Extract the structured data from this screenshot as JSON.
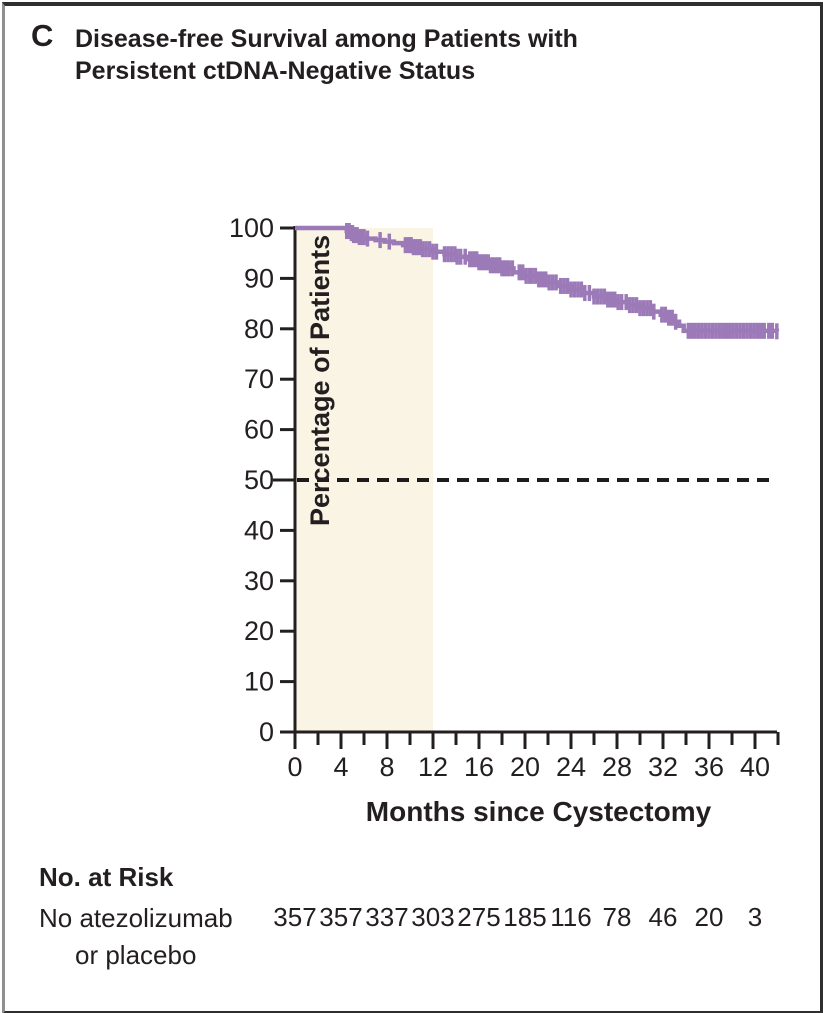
{
  "panel": {
    "label": "C",
    "title_line1": "Disease-free Survival among Patients with",
    "title_line2": "Persistent ctDNA-Negative Status"
  },
  "colors": {
    "curve": "#9c7ab8",
    "shade": "#f9f4e4",
    "axis": "#231f20",
    "dashed_line": "#1e1c1c",
    "text": "#231f20"
  },
  "chart_data": {
    "type": "line",
    "subtype": "kaplan-meier-step",
    "title": "Disease-free Survival among Patients with Persistent ctDNA-Negative Status",
    "xlabel": "Months since Cystectomy",
    "ylabel": "Percentage of Patients",
    "xlim": [
      0,
      42
    ],
    "ylim": [
      0,
      100
    ],
    "xticks_labeled": [
      0,
      4,
      8,
      12,
      16,
      20,
      24,
      28,
      32,
      36,
      40
    ],
    "xtick_minor_step": 2,
    "yticks": [
      0,
      10,
      20,
      30,
      40,
      50,
      60,
      70,
      80,
      90,
      100
    ],
    "grid": false,
    "legend": "none",
    "median_reference_line_pct": 50,
    "shaded_region": {
      "x_start": 0,
      "x_end": 12
    },
    "series": [
      {
        "name": "No atezolizumab or placebo",
        "step_points": [
          [
            0,
            100
          ],
          [
            4.3,
            100
          ],
          [
            4.5,
            99.4
          ],
          [
            4.8,
            99.0
          ],
          [
            5.1,
            98.6
          ],
          [
            5.5,
            98.2
          ],
          [
            6.2,
            97.9
          ],
          [
            7.0,
            97.6
          ],
          [
            7.8,
            97.3
          ],
          [
            8.6,
            97.0
          ],
          [
            9.4,
            96.6
          ],
          [
            10.2,
            96.2
          ],
          [
            11.0,
            95.8
          ],
          [
            12.0,
            95.3
          ],
          [
            13.0,
            94.8
          ],
          [
            14.0,
            94.3
          ],
          [
            15.0,
            93.8
          ],
          [
            16.0,
            93.2
          ],
          [
            17.0,
            92.6
          ],
          [
            18.0,
            92.0
          ],
          [
            19.0,
            91.2
          ],
          [
            20.0,
            90.5
          ],
          [
            21.0,
            89.8
          ],
          [
            22.0,
            89.2
          ],
          [
            23.0,
            88.5
          ],
          [
            24.0,
            87.8
          ],
          [
            25.0,
            87.1
          ],
          [
            26.0,
            86.4
          ],
          [
            27.0,
            85.8
          ],
          [
            28.0,
            85.3
          ],
          [
            29.0,
            84.7
          ],
          [
            30.0,
            84.1
          ],
          [
            31.0,
            83.4
          ],
          [
            31.8,
            82.8
          ],
          [
            32.4,
            82.2
          ],
          [
            33.0,
            81.4
          ],
          [
            33.4,
            80.6
          ],
          [
            33.8,
            79.6
          ],
          [
            41.9,
            79.5
          ]
        ],
        "censor_months": [
          4.5,
          4.6,
          4.7,
          4.9,
          5.0,
          5.1,
          5.2,
          5.4,
          5.6,
          5.8,
          6.0,
          6.3,
          7.4,
          8.2,
          9.6,
          9.8,
          10.0,
          10.1,
          10.3,
          10.5,
          10.7,
          10.9,
          11.1,
          11.4,
          11.7,
          12.0,
          12.3,
          13.0,
          13.3,
          13.6,
          13.9,
          14.1,
          14.4,
          14.8,
          15.2,
          15.5,
          15.8,
          16.0,
          16.2,
          16.4,
          16.6,
          16.8,
          17.0,
          17.2,
          17.4,
          17.6,
          17.8,
          18.0,
          18.2,
          18.4,
          18.6,
          18.9,
          19.5,
          19.8,
          20.1,
          20.4,
          20.6,
          20.9,
          21.2,
          21.5,
          21.8,
          22.1,
          22.4,
          22.7,
          23.1,
          23.4,
          23.7,
          24.0,
          24.3,
          24.6,
          24.9,
          25.2,
          25.6,
          26.0,
          26.3,
          26.6,
          26.9,
          27.2,
          27.5,
          27.8,
          28.1,
          28.4,
          28.8,
          29.1,
          29.4,
          29.7,
          30.0,
          30.3,
          30.6,
          30.9,
          31.2,
          31.9,
          32.2,
          32.5,
          32.8,
          33.1,
          34.2,
          34.5,
          34.8,
          35.1,
          35.4,
          35.7,
          36.0,
          36.3,
          36.6,
          36.9,
          37.2,
          37.5,
          37.8,
          38.1,
          38.4,
          38.7,
          39.0,
          39.3,
          39.6,
          39.9,
          40.2,
          40.5,
          40.8,
          41.2,
          41.5,
          41.9
        ]
      }
    ]
  },
  "risk_table": {
    "heading": "No. at Risk",
    "rows": [
      {
        "label_line1": "No atezolizumab",
        "label_line2": "or placebo",
        "at_months": [
          0,
          4,
          8,
          12,
          16,
          20,
          24,
          28,
          32,
          36,
          40
        ],
        "counts": [
          357,
          357,
          337,
          303,
          275,
          185,
          116,
          78,
          46,
          20,
          3
        ]
      }
    ]
  }
}
